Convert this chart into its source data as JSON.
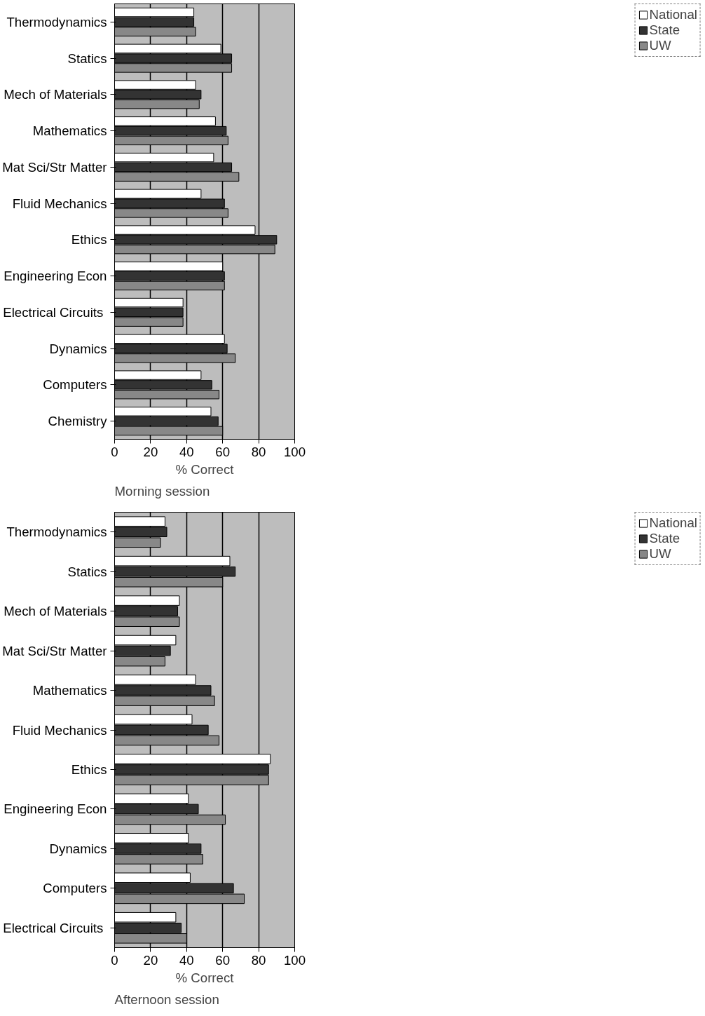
{
  "chart_data": [
    {
      "type": "bar",
      "orientation": "horizontal",
      "xlabel": "% Correct",
      "annotations": [
        "Morning session"
      ],
      "categories": [
        "Thermodynamics",
        "Statics",
        "Mech of Materials",
        "Mathematics",
        "Mat Sci/Str Matter",
        "Fluid Mechanics",
        "Ethics",
        "Engineering Econ",
        "Electrical  Circuits",
        "Dynamics",
        "Computers",
        "Chemistry"
      ],
      "series": [
        {
          "name": "National",
          "color": "#ffffff",
          "values": [
            44,
            59,
            45,
            56,
            55,
            48,
            78,
            60,
            38,
            61,
            48,
            53.5
          ]
        },
        {
          "name": "State",
          "color": "#333333",
          "values": [
            44,
            65,
            48,
            62,
            65,
            61,
            90,
            61,
            38,
            62.5,
            54,
            57.5
          ]
        },
        {
          "name": "UW",
          "color": "#888888",
          "values": [
            45,
            65,
            47,
            63,
            69,
            63,
            89,
            61,
            38,
            67,
            58,
            60
          ]
        }
      ],
      "xlim": [
        0,
        100
      ],
      "xticks": [
        0,
        20,
        40,
        60,
        80,
        100
      ],
      "grid": "x",
      "legend": "right"
    },
    {
      "type": "bar",
      "orientation": "horizontal",
      "xlabel": "% Correct",
      "annotations": [
        "Afternoon session"
      ],
      "categories": [
        "Thermodynamics",
        "Statics",
        "Mech of Materials",
        "Mat Sci/Str Matter",
        "Mathematics",
        "Fluid Mechanics",
        "Ethics",
        "Engineering Econ",
        "Dynamics",
        "Computers",
        "Electrical  Circuits"
      ],
      "series": [
        {
          "name": "National",
          "color": "#ffffff",
          "values": [
            28,
            64,
            36,
            34,
            45,
            43,
            86.5,
            41,
            41,
            42,
            34
          ]
        },
        {
          "name": "State",
          "color": "#333333",
          "values": [
            29,
            67,
            35,
            31,
            53.5,
            52,
            85.5,
            46.5,
            48,
            66,
            37
          ]
        },
        {
          "name": "UW",
          "color": "#888888",
          "values": [
            25.5,
            60,
            36,
            28,
            55.5,
            58,
            85.5,
            61.5,
            49,
            72,
            40
          ]
        }
      ],
      "xlim": [
        0,
        100
      ],
      "xticks": [
        0,
        20,
        40,
        60,
        80,
        100
      ],
      "grid": "x",
      "legend": "right"
    }
  ]
}
